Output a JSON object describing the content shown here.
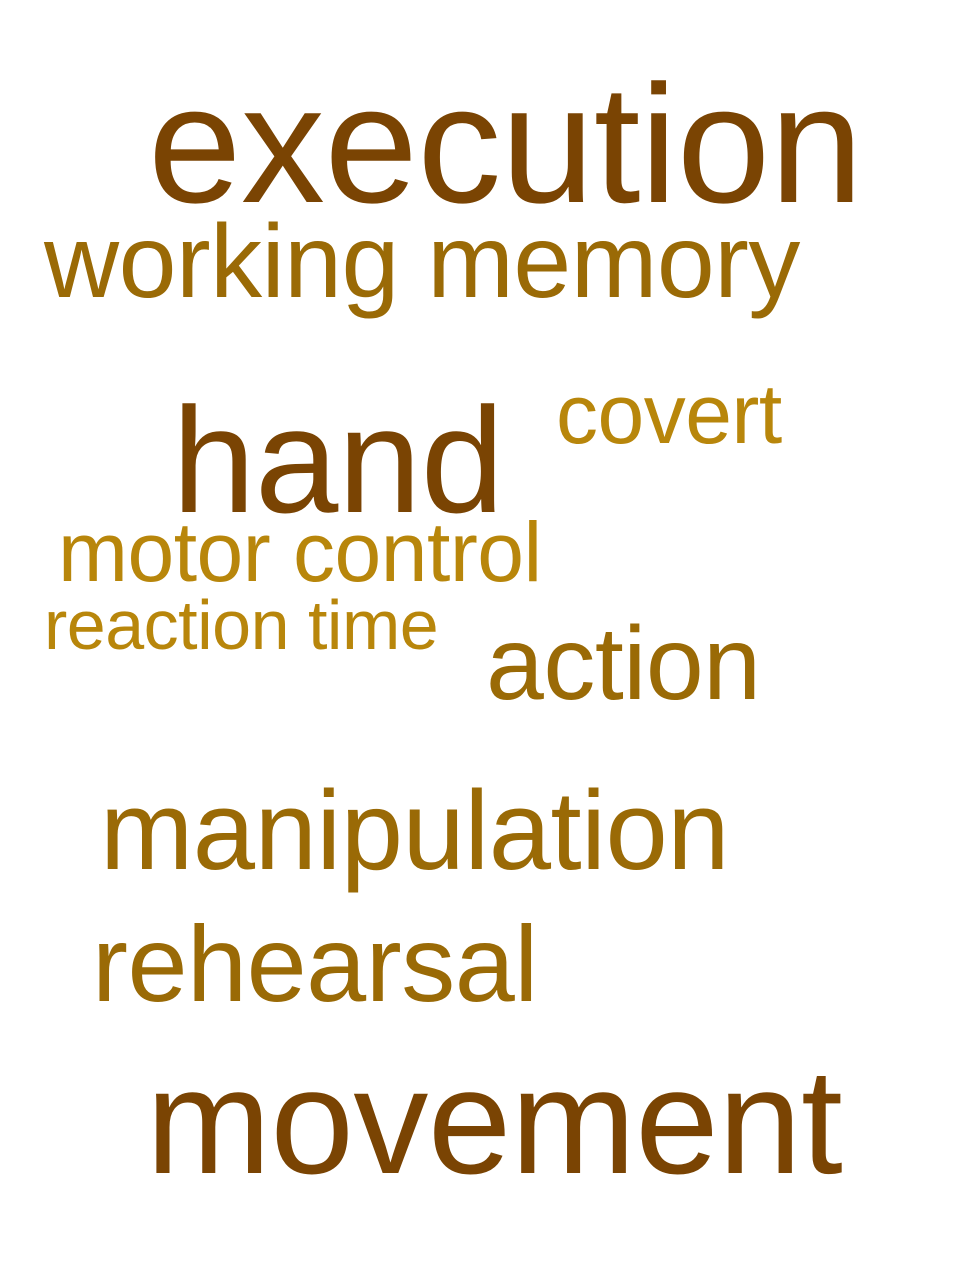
{
  "words": [
    {
      "text": "execution",
      "color": "#7a4403"
    },
    {
      "text": "working memory",
      "color": "#9a6a06"
    },
    {
      "text": "hand",
      "color": "#7a4403"
    },
    {
      "text": "covert",
      "color": "#b8860b"
    },
    {
      "text": "motor control",
      "color": "#b8860b"
    },
    {
      "text": "reaction time",
      "color": "#b8860b"
    },
    {
      "text": "action",
      "color": "#9a6a06"
    },
    {
      "text": "manipulation",
      "color": "#9a6a06"
    },
    {
      "text": "rehearsal",
      "color": "#9a6a06"
    },
    {
      "text": "movement",
      "color": "#7a4403"
    }
  ]
}
